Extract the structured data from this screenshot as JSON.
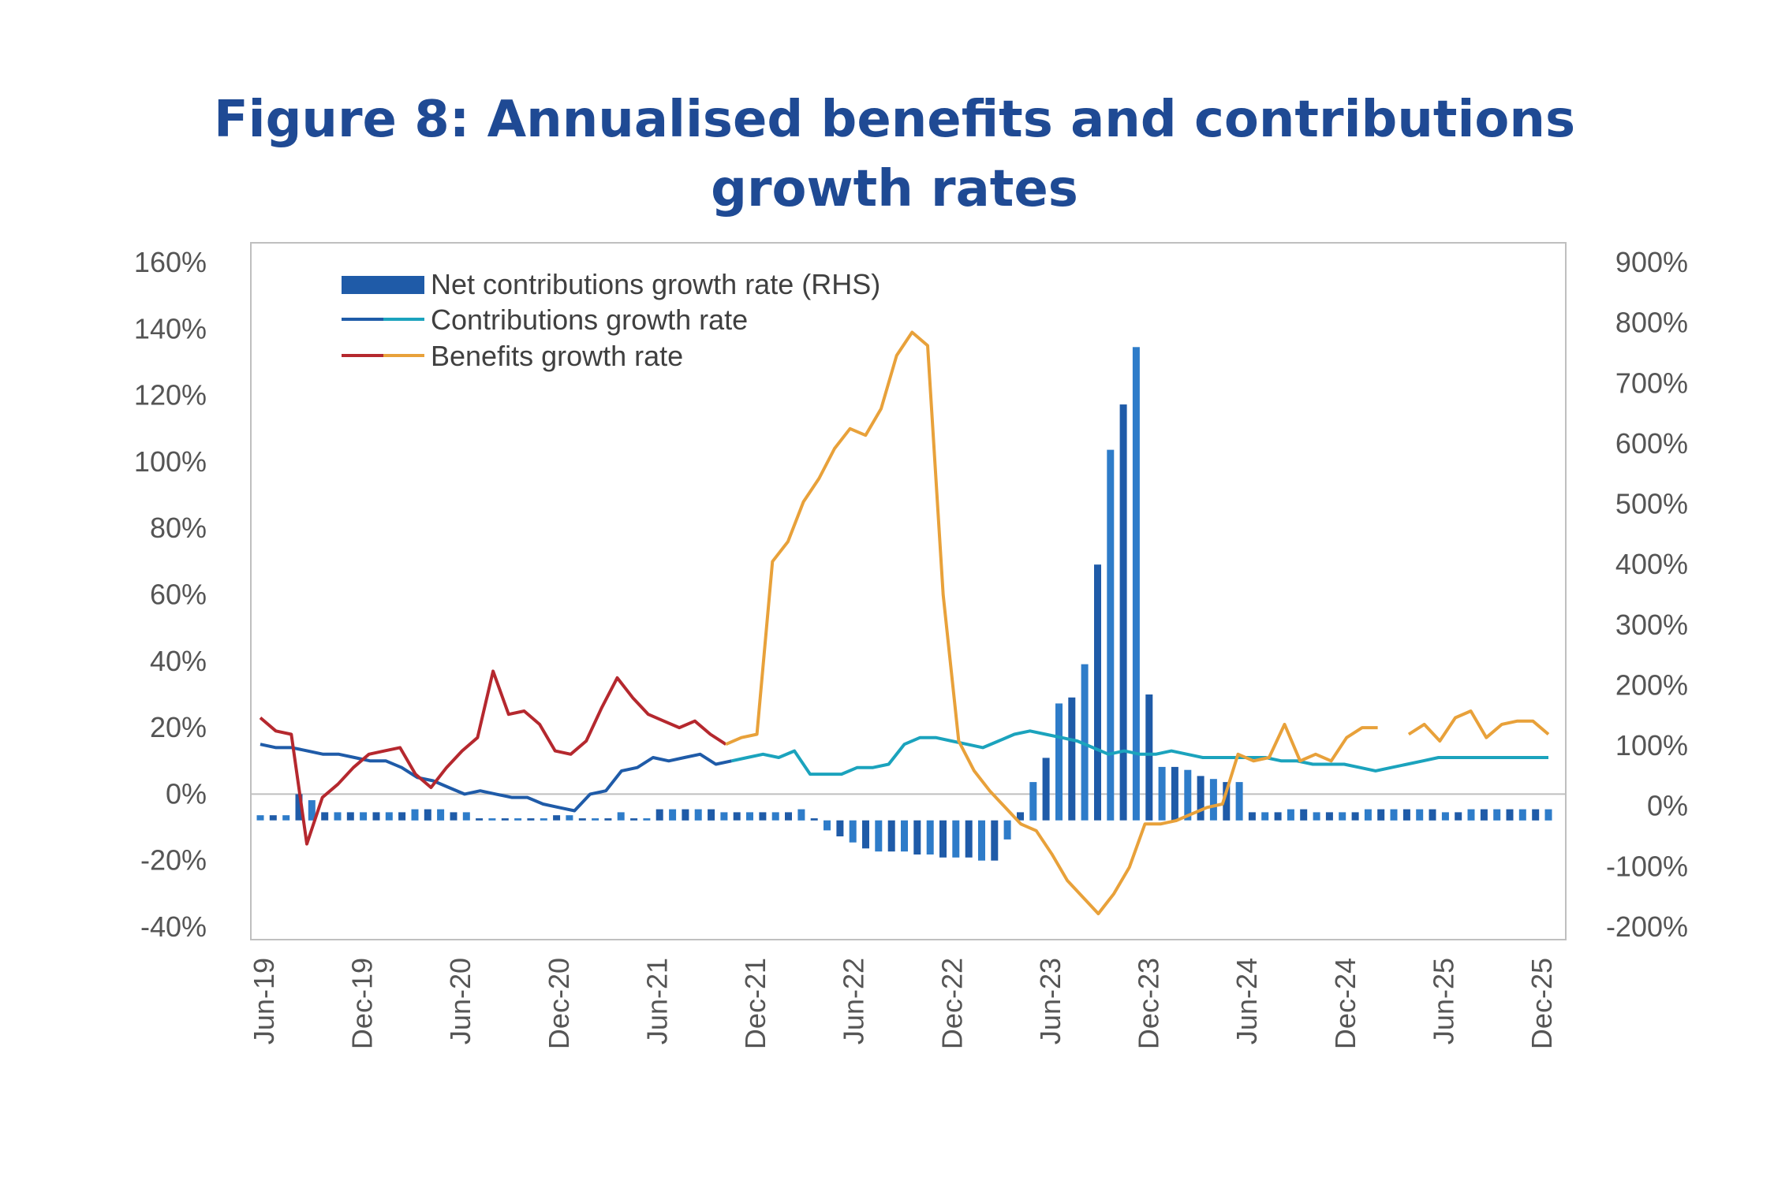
{
  "title": {
    "line1": "Figure 8: Annualised benefits and contributions",
    "line2": "growth rates"
  },
  "colors": {
    "bars": "#1f5ba8",
    "bars_light": "#2e7cc9",
    "contributions_early": "#1f5ba8",
    "contributions_late": "#1ba3bd",
    "benefits_early": "#b5282e",
    "benefits_late": "#e8a13a",
    "title": "#1f4a94",
    "axis": "#bfbfbf"
  },
  "chart_data": {
    "type": "bar+line",
    "title": "Figure 8: Annualised benefits and contributions growth rates",
    "x_tick_labels": [
      "Jun-19",
      "Dec-19",
      "Jun-20",
      "Dec-20",
      "Jun-21",
      "Dec-21",
      "Jun-22",
      "Dec-22",
      "Jun-23",
      "Dec-23",
      "Jun-24",
      "Dec-24",
      "Jun-25",
      "Dec-25"
    ],
    "y_left": {
      "label_format": "%",
      "ylim": [
        -40,
        160
      ],
      "ticks": [
        "160%",
        "140%",
        "120%",
        "100%",
        "80%",
        "60%",
        "40%",
        "20%",
        "0%",
        "-20%",
        "-40%"
      ]
    },
    "y_right": {
      "label_format": "%",
      "ylim": [
        -200,
        900
      ],
      "ticks": [
        "900%",
        "800%",
        "700%",
        "600%",
        "500%",
        "400%",
        "300%",
        "200%",
        "100%",
        "0%",
        "-100%",
        "-200%"
      ]
    },
    "legend": [
      {
        "key": "net",
        "label": "Net contributions growth rate (RHS)"
      },
      {
        "key": "contrib",
        "label": "Contributions growth rate"
      },
      {
        "key": "benefits",
        "label": "Benefits growth rate"
      }
    ],
    "series": [
      {
        "name": "Net contributions growth rate (RHS)",
        "axis": "right",
        "style": "bar",
        "values": [
          -15,
          -15,
          -15,
          20,
          10,
          -10,
          -10,
          -10,
          -10,
          -10,
          -10,
          -10,
          -5,
          -5,
          -5,
          -10,
          -10,
          -20,
          -20,
          -20,
          -20,
          -20,
          -20,
          -15,
          -15,
          -20,
          -20,
          -20,
          -10,
          -20,
          -20,
          -5,
          -5,
          -5,
          -5,
          -5,
          -10,
          -10,
          -10,
          -10,
          -10,
          -10,
          -5,
          -20,
          -40,
          -50,
          -60,
          -70,
          -75,
          -75,
          -75,
          -80,
          -80,
          -85,
          -85,
          -85,
          -90,
          -90,
          -55,
          -10,
          40,
          80,
          170,
          180,
          235,
          400,
          590,
          665,
          760,
          185,
          65,
          65,
          60,
          50,
          45,
          40,
          40,
          -10,
          -10,
          -10,
          -5,
          -5,
          -10,
          -10,
          -10,
          -10,
          -5,
          -5,
          -5,
          -5,
          -5,
          -5,
          -10,
          -10,
          -5,
          -5,
          -5,
          -5,
          -5,
          -5,
          -5
        ]
      },
      {
        "name": "Contributions growth rate",
        "axis": "left",
        "style": "line",
        "values": [
          15,
          14,
          14,
          13,
          12,
          12,
          11,
          10,
          10,
          8,
          5,
          4,
          2,
          0,
          1,
          0,
          -1,
          -1,
          -3,
          -4,
          -5,
          0,
          1,
          7,
          8,
          11,
          10,
          11,
          12,
          9,
          10,
          11,
          12,
          11,
          13,
          6,
          6,
          6,
          8,
          8,
          9,
          15,
          17,
          17,
          16,
          15,
          14,
          16,
          18,
          19,
          18,
          17,
          16,
          14,
          12,
          13,
          12,
          12,
          13,
          12,
          11,
          11,
          11,
          11,
          11,
          10,
          10,
          9,
          9,
          9,
          8,
          7,
          8,
          9,
          10,
          11,
          11,
          11,
          11,
          11,
          11,
          11,
          11
        ]
      },
      {
        "name": "Benefits growth rate",
        "axis": "left",
        "style": "line",
        "values": [
          23,
          19,
          18,
          -15,
          -1,
          3,
          8,
          12,
          13,
          14,
          6,
          2,
          8,
          13,
          17,
          37,
          24,
          25,
          21,
          13,
          12,
          16,
          26,
          35,
          29,
          24,
          22,
          20,
          22,
          18,
          15,
          17,
          18,
          70,
          76,
          88,
          95,
          104,
          110,
          108,
          116,
          132,
          139,
          135,
          60,
          16,
          7,
          1,
          -4,
          -9,
          -11,
          -18,
          -26,
          -31,
          -36,
          -30,
          -22,
          -9,
          -9,
          -8,
          -6,
          -4,
          -3,
          12,
          10,
          11,
          21,
          10,
          12,
          10,
          17,
          20,
          20,
          null,
          18,
          21,
          16,
          23,
          25,
          17,
          21,
          22,
          22,
          18
        ]
      }
    ]
  }
}
